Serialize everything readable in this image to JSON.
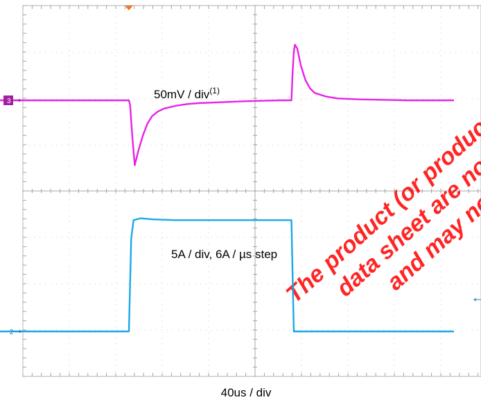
{
  "chart_data": {
    "type": "line",
    "title": "",
    "xlabel": "40us / div",
    "ylabel": "",
    "x_unit": "us",
    "x_per_div": 40,
    "x_divisions": 10,
    "x_range_us": [
      -120,
      280
    ],
    "y_divisions": 8,
    "grid": true,
    "series": [
      {
        "name": "",
        "channel_marker": "3",
        "color": "#e820e8",
        "scale_label_text": "50mV / div",
        "scale_label_sup": "(1)",
        "y_unit": "mV",
        "y_per_div": 50,
        "x": [
          -120,
          0,
          1,
          3,
          5,
          8,
          12,
          16,
          20,
          25,
          30,
          40,
          50,
          60,
          80,
          100,
          130,
          140,
          141,
          142,
          143,
          145,
          148,
          152,
          156,
          160,
          165,
          170,
          180,
          200,
          220,
          240,
          280
        ],
        "values": [
          0,
          0,
          -5,
          -40,
          -70,
          -55,
          -38,
          -25,
          -17,
          -12,
          -9,
          -6,
          -4,
          -3,
          -2,
          -1,
          0,
          0,
          30,
          52,
          60,
          56,
          38,
          22,
          13,
          8,
          6,
          4,
          2,
          1,
          0.5,
          0,
          0
        ]
      },
      {
        "name": "",
        "channel_marker": "2",
        "color": "#18a8e8",
        "scale_label_text": "5A / div, 6A / µs step",
        "y_unit": "A",
        "y_per_div": 5,
        "step_rate": "6A / µs",
        "x": [
          -120,
          0,
          2,
          4,
          10,
          20,
          40,
          60,
          100,
          140,
          142,
          144,
          280
        ],
        "values": [
          0,
          0,
          10,
          12,
          12.2,
          12.1,
          12,
          12,
          12,
          12,
          0,
          0,
          0
        ]
      }
    ],
    "watermark_lines": [
      "The product (or product",
      "data sheet are no longer",
      "and may not be ordered"
    ]
  }
}
